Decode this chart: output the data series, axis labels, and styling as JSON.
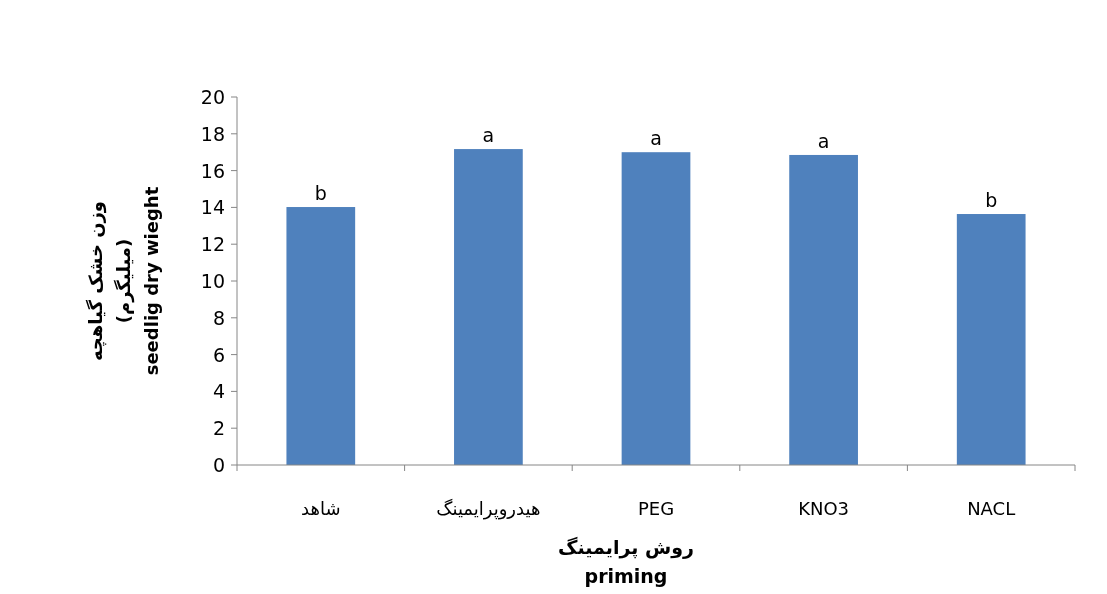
{
  "chart_data": {
    "type": "bar",
    "categories": [
      "شاهد",
      "هیدروپرایمینگ",
      "PEG",
      "KNO3",
      "NACL"
    ],
    "values": [
      14.02,
      17.17,
      17.0,
      16.85,
      13.64
    ],
    "color": "#4f81bd",
    "ylim": [
      0,
      20
    ],
    "yticks": [
      0,
      2,
      4,
      6,
      8,
      10,
      12,
      14,
      16,
      18,
      20
    ],
    "grid": false,
    "xlabel": "روش پرایمینگ\npriming",
    "ylabel": "وزن خشک گیاهچه\n(میلیگرم)\nseedlig dry wieght",
    "annotations": [
      {
        "text": "b",
        "x": "شاهد",
        "y": 14.02
      },
      {
        "text": "a",
        "x": "هیدروپرایمینگ",
        "y": 17.17
      },
      {
        "text": "a",
        "x": "PEG",
        "y": 17.0
      },
      {
        "text": "a",
        "x": "KNO3",
        "y": 16.85
      },
      {
        "text": "b",
        "x": "NACL",
        "y": 13.64
      }
    ]
  }
}
